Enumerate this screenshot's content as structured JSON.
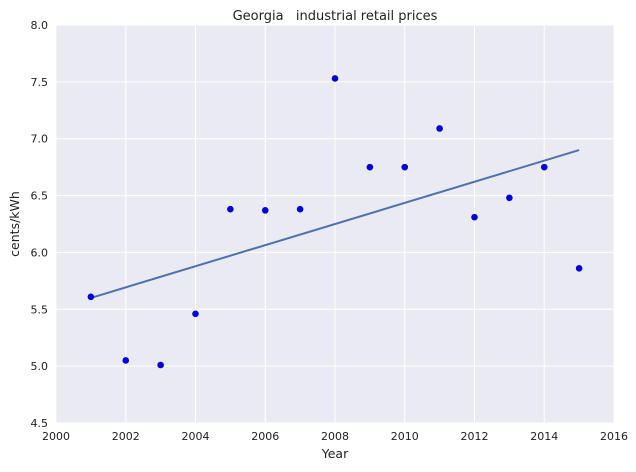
{
  "chart_data": {
    "type": "scatter",
    "title": "Georgia   industrial retail prices",
    "xlabel": "Year",
    "ylabel": "cents/kWh",
    "xlim": [
      2000,
      2016
    ],
    "ylim": [
      4.5,
      8.0
    ],
    "xticks": [
      2000,
      2002,
      2004,
      2006,
      2008,
      2010,
      2012,
      2014,
      2016
    ],
    "yticks": [
      "4.5",
      "5.0",
      "5.5",
      "6.0",
      "6.5",
      "7.0",
      "7.5",
      "8.0"
    ],
    "grid": true,
    "series": [
      {
        "kind": "scatter",
        "color": "#0000dd",
        "x": [
          2001,
          2002,
          2003,
          2004,
          2005,
          2006,
          2007,
          2008,
          2009,
          2010,
          2011,
          2012,
          2013,
          2014,
          2015
        ],
        "y": [
          5.61,
          5.05,
          5.01,
          5.46,
          6.38,
          6.37,
          6.38,
          7.53,
          6.75,
          6.75,
          7.09,
          6.31,
          6.48,
          6.75,
          5.86
        ]
      },
      {
        "kind": "line",
        "color": "#4c72b0",
        "x": [
          2001,
          2015
        ],
        "y": [
          5.6,
          6.9
        ]
      }
    ],
    "colors": {
      "background": "#eaeaf2",
      "grid": "#ffffff"
    }
  }
}
